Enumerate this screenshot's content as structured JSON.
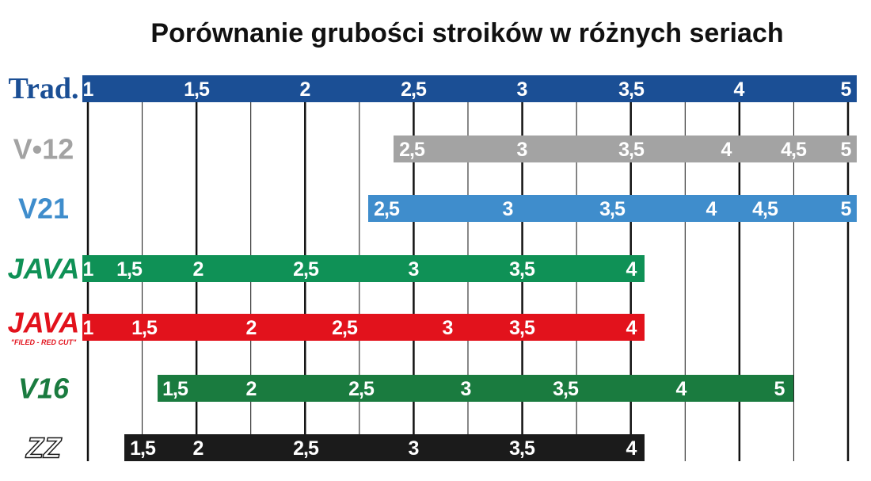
{
  "title": "Porównanie grubości stroików w różnych seriach",
  "rows": [
    {
      "logo": "Trad.",
      "color": "#1b4f95",
      "labels": [
        "1",
        "1,5",
        "2",
        "2,5",
        "3",
        "3,5",
        "4",
        "5"
      ]
    },
    {
      "logo": "V•12",
      "color": "#a3a3a3",
      "labels": [
        "2,5",
        "3",
        "3,5",
        "4",
        "4,5",
        "5"
      ]
    },
    {
      "logo": "V21",
      "color": "#3f8dcc",
      "labels": [
        "2,5",
        "3",
        "3,5",
        "4",
        "4,5",
        "5"
      ]
    },
    {
      "logo": "JAVA",
      "color": "#0f9156",
      "labels": [
        "1",
        "1,5",
        "2",
        "2,5",
        "3",
        "3,5",
        "4"
      ]
    },
    {
      "logo": "JAVA",
      "sublogo": "\"FILED - RED CUT\"",
      "color": "#e2121c",
      "labels": [
        "1",
        "1,5",
        "2",
        "2,5",
        "3",
        "3,5",
        "4"
      ]
    },
    {
      "logo": "V16",
      "color": "#1a7b3f",
      "labels": [
        "1,5",
        "2",
        "2,5",
        "3",
        "3,5",
        "4",
        "5"
      ]
    },
    {
      "logo": "ZZ",
      "color": "#1b1b1b",
      "labels": [
        "1,5",
        "2",
        "2,5",
        "3",
        "3,5",
        "4"
      ]
    }
  ]
}
